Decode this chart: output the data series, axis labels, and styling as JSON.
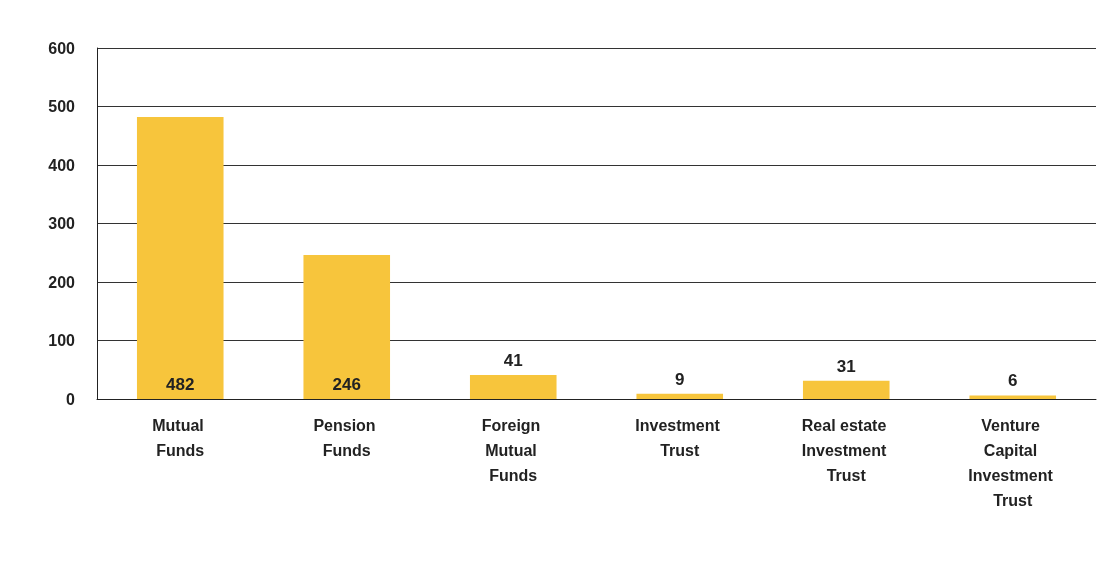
{
  "chart_data": {
    "type": "bar",
    "categories": [
      "Mutual Funds",
      "Pension Funds",
      "Foreign Mutual Funds",
      "Investment Trust",
      "Real estate Investment Trust",
      "Venture Capital Investment Trust"
    ],
    "values": [
      482,
      246,
      41,
      9,
      31,
      6
    ],
    "color": "#f7c53c",
    "ylim": [
      0,
      600
    ],
    "yticks": [
      0,
      100,
      200,
      300,
      400,
      500,
      600
    ],
    "grid": true,
    "data_labels": true
  }
}
